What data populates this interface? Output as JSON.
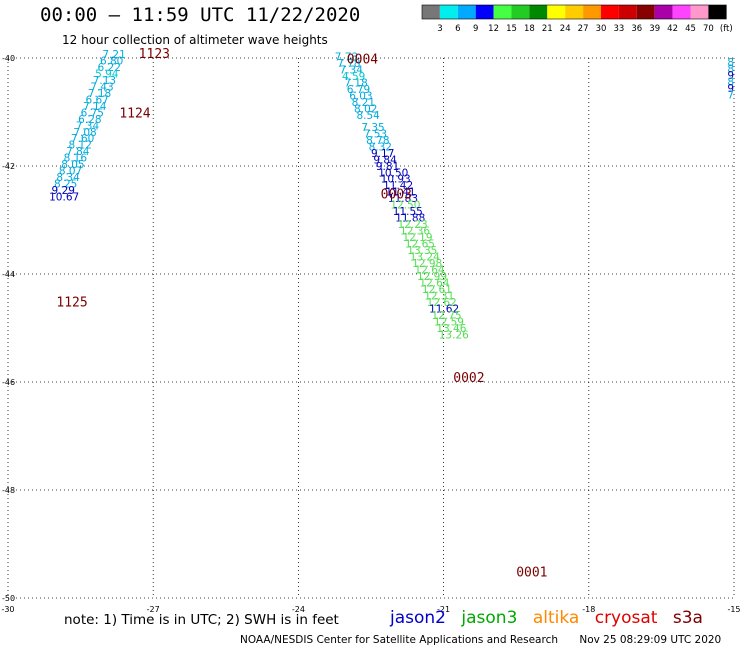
{
  "title": "00:00 – 11:59 UTC 11/22/2020",
  "subtitle": "12 hour collection of altimeter wave heights",
  "note": "note:  1) Time is in UTC;  2) SWH is in feet",
  "satellites": [
    {
      "name": "jason2",
      "color": "#0000cc"
    },
    {
      "name": "jason3",
      "color": "#00aa00"
    },
    {
      "name": "altika",
      "color": "#ff8800"
    },
    {
      "name": "cryosat",
      "color": "#e00000"
    },
    {
      "name": "s3a",
      "color": "#7a0000"
    }
  ],
  "credit": {
    "agency": "NOAA/NESDIS Center for Satellite Applications and Research",
    "timestamp": "Nov 25 08:29:09 UTC 2020"
  },
  "color_scale": {
    "colors": [
      "#777777",
      "#00eeee",
      "#00aaff",
      "#0000ff",
      "#44ff44",
      "#22cc22",
      "#008800",
      "#ffff00",
      "#ffcc00",
      "#ff9900",
      "#ff0000",
      "#cc0000",
      "#880000",
      "#aa00aa",
      "#ff44ff",
      "#ff99cc",
      "#000000"
    ],
    "labels": [
      "3",
      "6",
      "9",
      "12",
      "15",
      "18",
      "21",
      "24",
      "27",
      "30",
      "33",
      "36",
      "39",
      "42",
      "45",
      "70",
      "(ft)"
    ]
  },
  "chart_data": {
    "type": "scatter",
    "xlabel": "",
    "ylabel": "",
    "xlim": [
      -30,
      -15
    ],
    "ylim": [
      -50,
      -40
    ],
    "x_ticks": [
      "-30",
      "-27",
      "-24",
      "-21",
      "-18",
      "-15"
    ],
    "y_ticks": [
      "-40",
      "-42",
      "-44",
      "-46",
      "-48",
      "-50"
    ],
    "grid": true,
    "time_labels": [
      {
        "text": "1123",
        "lon": -27.3,
        "lat": -40.0
      },
      {
        "text": "1124",
        "lon": -27.7,
        "lat": -41.1
      },
      {
        "text": "1125",
        "lon": -29.0,
        "lat": -44.6
      },
      {
        "text": "0004",
        "lon": -23.0,
        "lat": -40.1
      },
      {
        "text": "0003",
        "lon": -22.3,
        "lat": -42.6
      },
      {
        "text": "0002",
        "lon": -20.8,
        "lat": -46.0
      },
      {
        "text": "0001",
        "lon": -19.5,
        "lat": -49.6
      }
    ],
    "series": [
      {
        "name": "1125",
        "points": [
          {
            "lon": -28.05,
            "lat": -40.0,
            "swh": "7.21"
          },
          {
            "lon": -28.1,
            "lat": -40.12,
            "swh": "6.80"
          },
          {
            "lon": -28.15,
            "lat": -40.24,
            "swh": "6.22"
          },
          {
            "lon": -28.2,
            "lat": -40.36,
            "swh": "5.94"
          },
          {
            "lon": -28.25,
            "lat": -40.48,
            "swh": "7.13"
          },
          {
            "lon": -28.3,
            "lat": -40.6,
            "swh": "7.43"
          },
          {
            "lon": -28.35,
            "lat": -40.72,
            "swh": "7.18"
          },
          {
            "lon": -28.4,
            "lat": -40.84,
            "swh": "6.67"
          },
          {
            "lon": -28.45,
            "lat": -40.96,
            "swh": "7.14"
          },
          {
            "lon": -28.5,
            "lat": -41.08,
            "swh": "6.75"
          },
          {
            "lon": -28.55,
            "lat": -41.2,
            "swh": "6.28"
          },
          {
            "lon": -28.6,
            "lat": -41.32,
            "swh": "7.34"
          },
          {
            "lon": -28.65,
            "lat": -41.44,
            "swh": "7.08"
          },
          {
            "lon": -28.7,
            "lat": -41.56,
            "swh": "7.60"
          },
          {
            "lon": -28.75,
            "lat": -41.68,
            "swh": "8.12"
          },
          {
            "lon": -28.8,
            "lat": -41.8,
            "swh": "7.84"
          },
          {
            "lon": -28.85,
            "lat": -41.92,
            "swh": "8.16"
          },
          {
            "lon": -28.9,
            "lat": -42.04,
            "swh": "8.05"
          },
          {
            "lon": -28.95,
            "lat": -42.16,
            "swh": "8.07"
          },
          {
            "lon": -29.0,
            "lat": -42.28,
            "swh": "8.34"
          },
          {
            "lon": -29.05,
            "lat": -42.4,
            "swh": "8.25"
          },
          {
            "lon": -29.1,
            "lat": -42.52,
            "swh": "9.29"
          },
          {
            "lon": -29.15,
            "lat": -42.64,
            "swh": "10.67"
          }
        ]
      },
      {
        "name": "0004",
        "points": [
          {
            "lon": -23.25,
            "lat": -40.05,
            "swh": "7.73"
          },
          {
            "lon": -23.2,
            "lat": -40.17,
            "swh": "7.78"
          },
          {
            "lon": -23.15,
            "lat": -40.29,
            "swh": "7.34"
          },
          {
            "lon": -23.1,
            "lat": -40.41,
            "swh": "4.59"
          },
          {
            "lon": -23.05,
            "lat": -40.53,
            "swh": "7.18"
          },
          {
            "lon": -23.0,
            "lat": -40.65,
            "swh": "6.79"
          },
          {
            "lon": -22.95,
            "lat": -40.77,
            "swh": "6.03"
          },
          {
            "lon": -22.9,
            "lat": -40.89,
            "swh": "8.21"
          },
          {
            "lon": -22.85,
            "lat": -41.01,
            "swh": "8.02"
          },
          {
            "lon": -22.8,
            "lat": -41.13,
            "swh": "8.54"
          }
        ]
      },
      {
        "name": "0003",
        "points": [
          {
            "lon": -22.7,
            "lat": -41.35,
            "swh": "7.35"
          },
          {
            "lon": -22.65,
            "lat": -41.47,
            "swh": "7.53"
          },
          {
            "lon": -22.6,
            "lat": -41.59,
            "swh": "8.78"
          },
          {
            "lon": -22.55,
            "lat": -41.71,
            "swh": "8.32"
          },
          {
            "lon": -22.5,
            "lat": -41.83,
            "swh": "9.17"
          },
          {
            "lon": -22.45,
            "lat": -41.95,
            "swh": "9.84"
          },
          {
            "lon": -22.4,
            "lat": -42.07,
            "swh": "9.81"
          },
          {
            "lon": -22.35,
            "lat": -42.19,
            "swh": "10.50"
          },
          {
            "lon": -22.3,
            "lat": -42.31,
            "swh": "10.93"
          },
          {
            "lon": -22.25,
            "lat": -42.43,
            "swh": "11.42"
          },
          {
            "lon": -22.2,
            "lat": -42.55,
            "swh": "11.41"
          },
          {
            "lon": -22.15,
            "lat": -42.67,
            "swh": "11.83"
          },
          {
            "lon": -22.1,
            "lat": -42.79,
            "swh": "12.50"
          },
          {
            "lon": -22.05,
            "lat": -42.91,
            "swh": "11.55"
          },
          {
            "lon": -22.0,
            "lat": -43.03,
            "swh": "11.88"
          }
        ]
      },
      {
        "name": "0002",
        "points": [
          {
            "lon": -21.95,
            "lat": -43.15,
            "swh": "12.23"
          },
          {
            "lon": -21.9,
            "lat": -43.27,
            "swh": "12.36"
          },
          {
            "lon": -21.85,
            "lat": -43.39,
            "swh": "12.19"
          },
          {
            "lon": -21.8,
            "lat": -43.51,
            "swh": "12.65"
          },
          {
            "lon": -21.75,
            "lat": -43.63,
            "swh": "13.35"
          },
          {
            "lon": -21.7,
            "lat": -43.75,
            "swh": "13.24"
          },
          {
            "lon": -21.65,
            "lat": -43.87,
            "swh": "12.98"
          },
          {
            "lon": -21.6,
            "lat": -43.99,
            "swh": "12.64"
          },
          {
            "lon": -21.55,
            "lat": -44.11,
            "swh": "12.99"
          },
          {
            "lon": -21.5,
            "lat": -44.23,
            "swh": "12.64"
          },
          {
            "lon": -21.45,
            "lat": -44.35,
            "swh": "12.61"
          },
          {
            "lon": -21.4,
            "lat": -44.47,
            "swh": "12.31"
          },
          {
            "lon": -21.35,
            "lat": -44.59,
            "swh": "12.62"
          }
        ]
      },
      {
        "name": "0001",
        "points": [
          {
            "lon": -21.3,
            "lat": -44.71,
            "swh": "11.62"
          },
          {
            "lon": -21.25,
            "lat": -44.83,
            "swh": "12.75"
          },
          {
            "lon": -21.2,
            "lat": -44.95,
            "swh": "12.59"
          },
          {
            "lon": -21.15,
            "lat": -45.07,
            "swh": "13.46"
          },
          {
            "lon": -21.1,
            "lat": -45.19,
            "swh": "13.26"
          }
        ]
      },
      {
        "name": "east-edge",
        "points": [
          {
            "lon": -15.0,
            "lat": -40.15,
            "swh": "8"
          },
          {
            "lon": -15.0,
            "lat": -40.27,
            "swh": "8"
          },
          {
            "lon": -15.0,
            "lat": -40.39,
            "swh": "9"
          },
          {
            "lon": -15.0,
            "lat": -40.51,
            "swh": "8"
          },
          {
            "lon": -15.0,
            "lat": -40.63,
            "swh": "9"
          },
          {
            "lon": -15.0,
            "lat": -40.75,
            "swh": "7"
          }
        ]
      }
    ]
  }
}
